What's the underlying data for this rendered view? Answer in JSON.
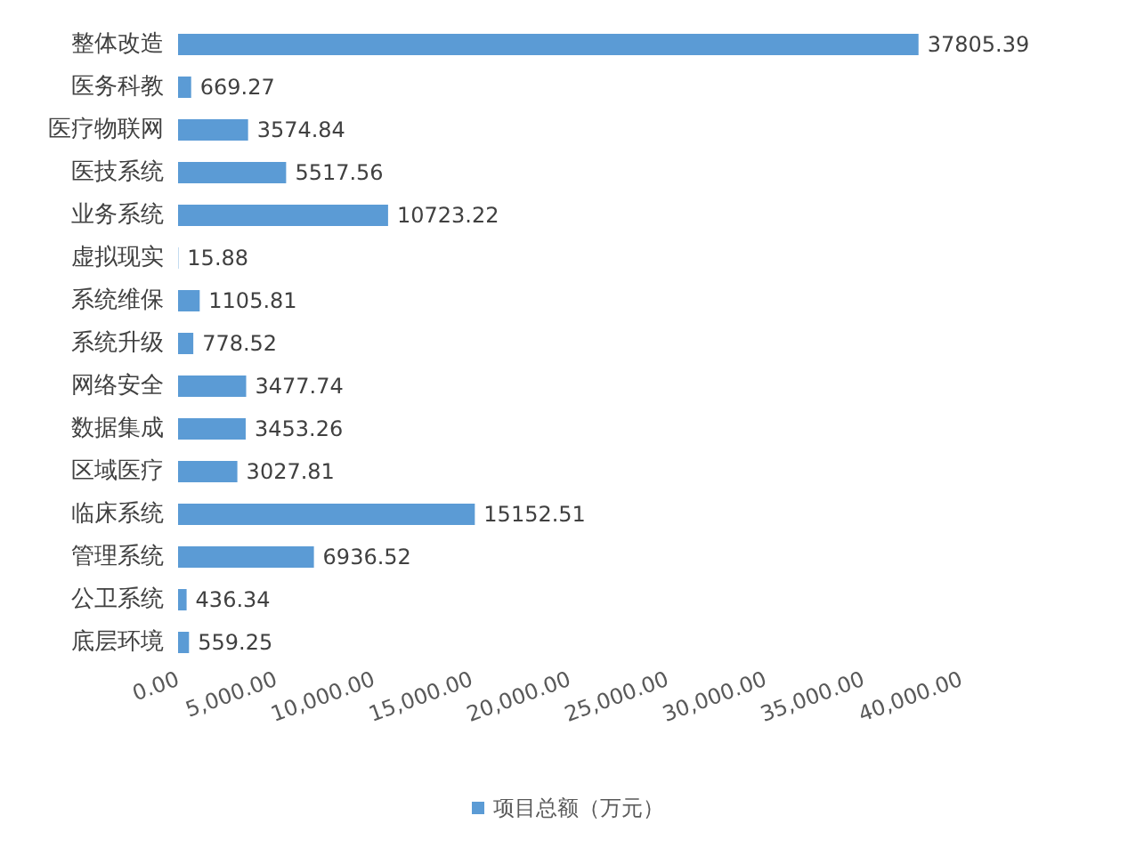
{
  "chart_data": {
    "type": "bar",
    "orientation": "horizontal",
    "categories": [
      "整体改造",
      "医务科教",
      "医疗物联网",
      "医技系统",
      "业务系统",
      "虚拟现实",
      "系统维保",
      "系统升级",
      "网络安全",
      "数据集成",
      "区域医疗",
      "临床系统",
      "管理系统",
      "公卫系统",
      "底层环境"
    ],
    "series": [
      {
        "name": "项目总额（万元）",
        "color": "#5b9bd5",
        "values": [
          37805.39,
          669.27,
          3574.84,
          5517.56,
          10723.22,
          15.88,
          1105.81,
          778.52,
          3477.74,
          3453.26,
          3027.81,
          15152.51,
          6936.52,
          436.34,
          559.25
        ]
      }
    ],
    "data_labels": true,
    "xlim": [
      0,
      40000
    ],
    "xticks": [
      {
        "value": 0,
        "label": "0.00"
      },
      {
        "value": 5000,
        "label": "5,000.00"
      },
      {
        "value": 10000,
        "label": "10,000.00"
      },
      {
        "value": 15000,
        "label": "15,000.00"
      },
      {
        "value": 20000,
        "label": "20,000.00"
      },
      {
        "value": 25000,
        "label": "25,000.00"
      },
      {
        "value": 30000,
        "label": "30,000.00"
      },
      {
        "value": 35000,
        "label": "35,000.00"
      },
      {
        "value": 40000,
        "label": "40,000.00"
      }
    ],
    "grid": false,
    "legend": "bottom"
  }
}
